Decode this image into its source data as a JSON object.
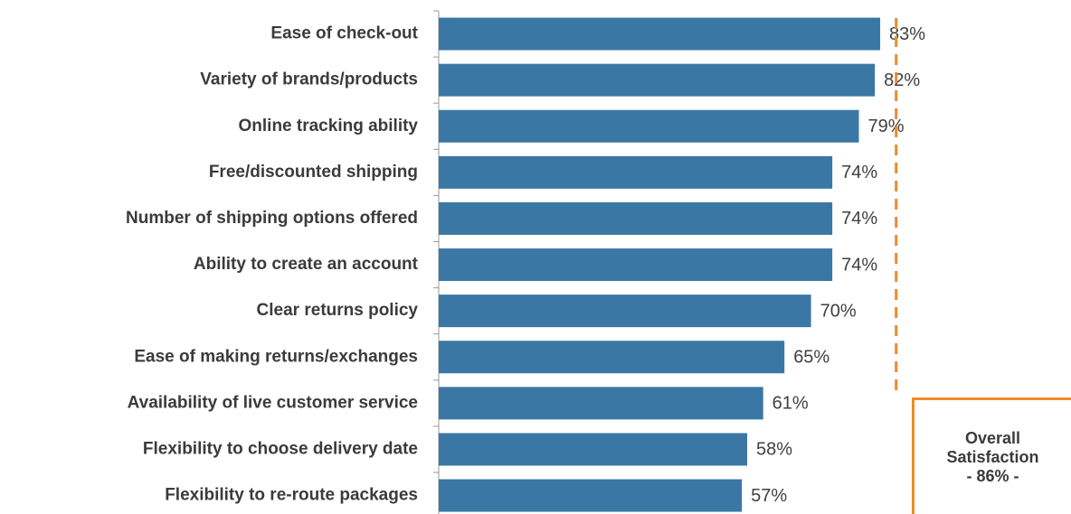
{
  "chart_data": {
    "type": "bar",
    "orientation": "horizontal",
    "categories": [
      "Ease of check-out",
      "Variety of brands/products",
      "Online tracking ability",
      "Free/discounted shipping",
      "Number of shipping options offered",
      "Ability to create an account",
      "Clear returns policy",
      "Ease of making returns/exchanges",
      "Availability of live customer service",
      "Flexibility to choose delivery date",
      "Flexibility to re-route packages"
    ],
    "values": [
      83,
      82,
      79,
      74,
      74,
      74,
      70,
      65,
      61,
      58,
      57
    ],
    "value_labels": [
      "83%",
      "82%",
      "79%",
      "74%",
      "74%",
      "74%",
      "70%",
      "65%",
      "61%",
      "58%",
      "57%"
    ],
    "color": "#3a77a5",
    "xlim": [
      0,
      100
    ],
    "reference_line": {
      "value": 86,
      "color": "#f08a2c",
      "label": "Overall Satisfaction",
      "value_label": "- 86% -"
    }
  }
}
